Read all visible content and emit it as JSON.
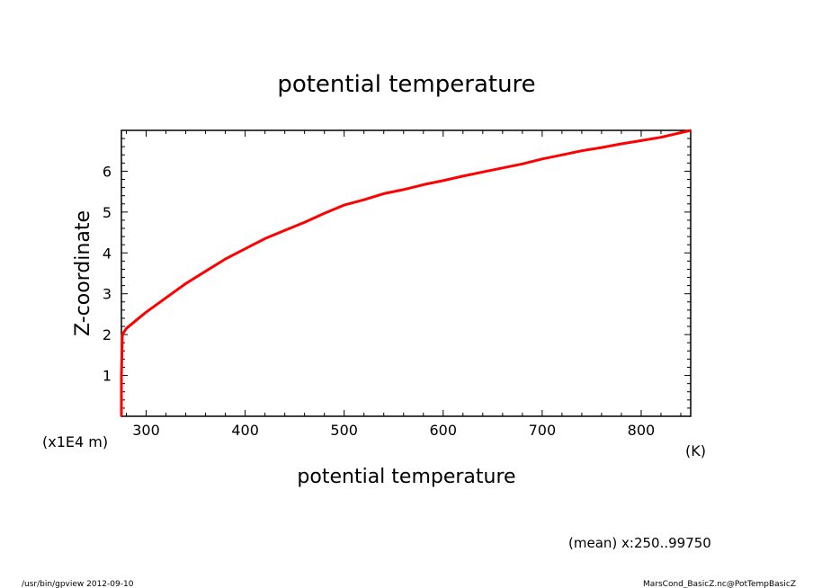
{
  "chart_data": {
    "type": "line",
    "title": "potential temperature",
    "xlabel": "potential temperature",
    "x_unit": "(K)",
    "ylabel": "Z-coordinate",
    "y_unit": "(x1E4 m)",
    "xlim": [
      275,
      850
    ],
    "ylim": [
      0,
      7
    ],
    "x_ticks": [
      300,
      400,
      500,
      600,
      700,
      800
    ],
    "y_ticks": [
      1,
      2,
      3,
      4,
      5,
      6
    ],
    "grid": false,
    "line_color": "#ff0000",
    "series": [
      {
        "x": [
          275,
          275,
          276,
          280,
          290,
          300,
          320,
          340,
          360,
          380,
          400,
          420,
          440,
          460,
          480,
          500,
          520,
          540,
          560,
          580,
          600,
          620,
          640,
          660,
          680,
          700,
          720,
          740,
          760,
          780,
          800,
          820,
          850
        ],
        "y": [
          0,
          1.0,
          2.0,
          2.15,
          2.35,
          2.55,
          2.9,
          3.25,
          3.55,
          3.85,
          4.1,
          4.35,
          4.55,
          4.75,
          4.97,
          5.17,
          5.3,
          5.45,
          5.55,
          5.67,
          5.77,
          5.88,
          5.98,
          6.08,
          6.18,
          6.3,
          6.4,
          6.5,
          6.58,
          6.67,
          6.75,
          6.83,
          7.0
        ]
      }
    ]
  },
  "footer": {
    "mean_note": "(mean) x:250..99750",
    "left_note": "/usr/bin/gpview   2012-09-10",
    "right_note": "MarsCond_BasicZ.nc@PotTempBasicZ"
  }
}
